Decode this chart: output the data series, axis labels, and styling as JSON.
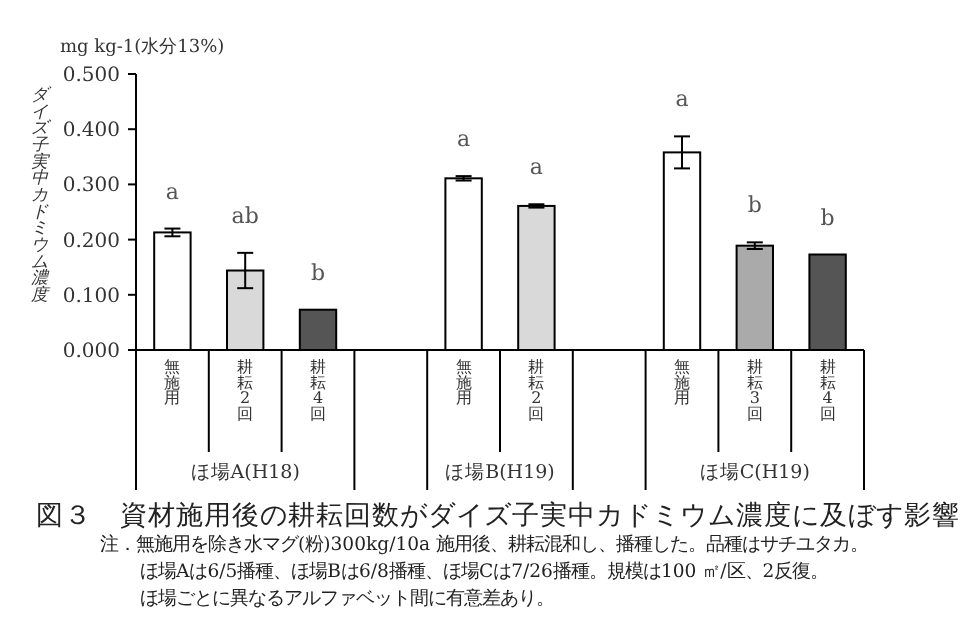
{
  "chart_data": {
    "type": "bar",
    "title": "図３　資材施用後の耕耘回数がダイズ子実中カドミウム濃度に及ぼす影響",
    "ylabel": "ダイズ子実中カドミウム濃度",
    "categories": [
      "無施用",
      "耕耘2回",
      "耕耘4回",
      null,
      "無施用",
      "耕耘2回",
      null,
      "無施用",
      "耕耘3回",
      "耕耘4回"
    ],
    "values": [
      0.213,
      0.144,
      0.073,
      null,
      0.311,
      0.261,
      null,
      0.358,
      0.189,
      0.173
    ],
    "errors": [
      0.007,
      0.032,
      null,
      null,
      0.004,
      0.003,
      null,
      0.029,
      0.006,
      null
    ],
    "colors": [
      "#ffffff",
      "#d9d9d9",
      "#555555",
      null,
      "#ffffff",
      "#d9d9d9",
      null,
      "#ffffff",
      "#aaaaaa",
      "#555555"
    ],
    "value_labels": [
      "a",
      "ab",
      "b",
      null,
      "a",
      "a",
      null,
      "a",
      "b",
      "b"
    ],
    "ylim": [
      0,
      0.5
    ],
    "yticks": [
      {
        "value": 0,
        "label": "0.000"
      },
      {
        "value": 0.1,
        "label": "0.100"
      },
      {
        "value": 0.2,
        "label": "0.200"
      },
      {
        "value": 0.3,
        "label": "0.300"
      },
      {
        "value": 0.4,
        "label": "0.400"
      },
      {
        "value": 0.5,
        "label": "0.500"
      }
    ],
    "grid": false,
    "legend": false,
    "annotations": [
      "mg kg-1(水分13%)",
      "ほ場A(H18)",
      "ほ場B(H19)",
      "ほ場C(H19)",
      "注．無施用を除き水マグ(粉)300kg/10a 施用後、耕耘混和し、播種した。品種はサチユタカ。",
      "ほ場Aは6/5播種、ほ場Bは6/8播種、ほ場Cは7/26播種。規模は100 ㎡/区、2反復。",
      "ほ場ごとに異なるアルファベット間に有意差あり。"
    ]
  }
}
